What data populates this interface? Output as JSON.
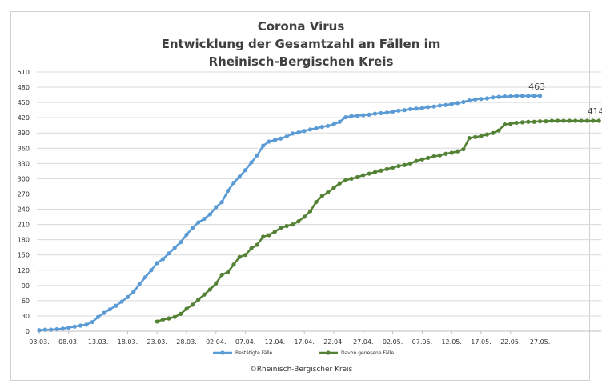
{
  "chart_data": {
    "type": "line",
    "title_lines": [
      "Corona Virus",
      "Entwicklung der Gesamtzahl an Fällen im",
      "Rheinisch-Bergischen Kreis"
    ],
    "xlabel": "",
    "ylabel": "",
    "x_start": "03.03.",
    "x_tick_labels": [
      "03.03.",
      "08.03.",
      "13.03.",
      "18.03.",
      "23.03.",
      "28.03.",
      "02.04.",
      "07.04.",
      "12.04.",
      "17.04.",
      "22.04.",
      "27.04.",
      "02.05.",
      "07.05.",
      "12.05.",
      "17.05.",
      "22.05.",
      "27.05."
    ],
    "y_ticks": [
      0,
      30,
      60,
      90,
      120,
      150,
      180,
      210,
      240,
      270,
      300,
      330,
      360,
      390,
      420,
      450,
      480,
      510
    ],
    "ylim": [
      0,
      510
    ],
    "grid": "horizontal",
    "legend_position": "bottom",
    "series": [
      {
        "name": "Bestätigte Fälle",
        "color": "#5b9bd5",
        "end_label": "463",
        "values": [
          2,
          3,
          3,
          4,
          5,
          7,
          9,
          11,
          13,
          18,
          28,
          36,
          43,
          50,
          58,
          67,
          77,
          92,
          106,
          120,
          134,
          142,
          153,
          164,
          175,
          190,
          203,
          214,
          221,
          230,
          244,
          254,
          276,
          292,
          304,
          317,
          332,
          346,
          365,
          373,
          376,
          379,
          383,
          389,
          391,
          394,
          397,
          399,
          402,
          404,
          407,
          412,
          421,
          423,
          424,
          425,
          426,
          428,
          429,
          430,
          432,
          434,
          435,
          437,
          438,
          439,
          441,
          442,
          444,
          445,
          447,
          449,
          451,
          454,
          456,
          457,
          458,
          460,
          461,
          462,
          462,
          463,
          463,
          463,
          463,
          463
        ]
      },
      {
        "name": "Davon genesene Fälle",
        "color": "#548235",
        "end_label": "414",
        "start_index": 20,
        "values": [
          19,
          23,
          25,
          28,
          34,
          44,
          52,
          62,
          72,
          82,
          94,
          111,
          116,
          131,
          146,
          150,
          163,
          170,
          186,
          189,
          196,
          203,
          207,
          210,
          216,
          225,
          236,
          254,
          266,
          273,
          282,
          291,
          297,
          300,
          303,
          307,
          310,
          313,
          316,
          319,
          322,
          325,
          327,
          330,
          335,
          338,
          341,
          344,
          346,
          349,
          351,
          354,
          358,
          380,
          382,
          384,
          387,
          390,
          395,
          407,
          408,
          410,
          411,
          412,
          412,
          413,
          413,
          414,
          414,
          414,
          414,
          414,
          414,
          414,
          414,
          414
        ]
      }
    ]
  },
  "footer": {
    "copyright": "©Rheinisch-Bergischer Kreis"
  }
}
